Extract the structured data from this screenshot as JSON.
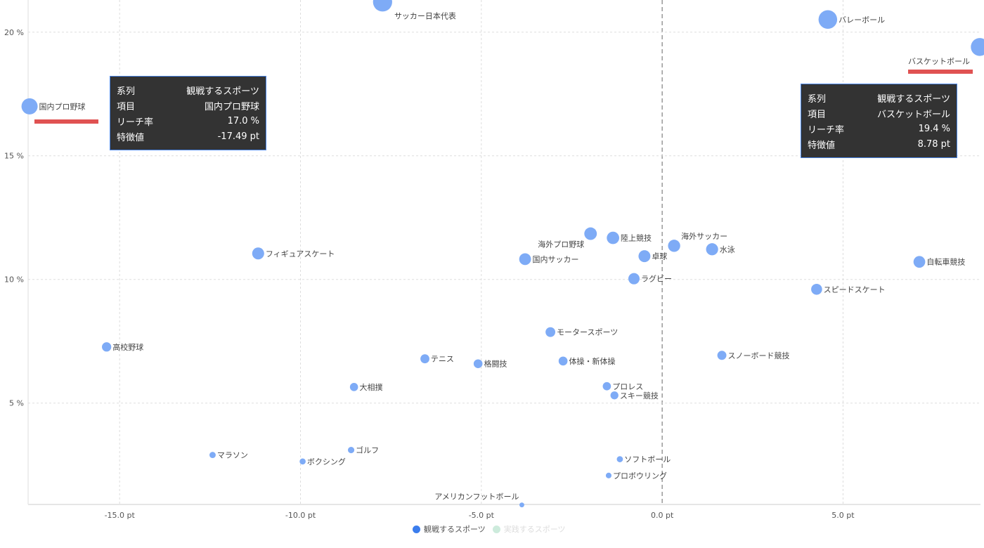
{
  "chart_data": {
    "type": "scatter",
    "xlim": [
      -17.53,
      8.8
    ],
    "ylim": [
      0.9,
      21.3
    ],
    "x_ticks": [
      -15,
      -10,
      -5,
      0,
      5
    ],
    "x_tick_labels": [
      "-15.0 pt",
      "-10.0 pt",
      "-5.0 pt",
      "0.0 pt",
      "5.0 pt"
    ],
    "y_ticks": [
      5,
      10,
      15,
      20
    ],
    "y_tick_labels": [
      "5 %",
      "10 %",
      "15 %",
      "20 %"
    ],
    "grid": true,
    "legend_placement": "bottom",
    "colors": {
      "bubble": "#7eabf6",
      "series1": "#3b7ded",
      "series2": "#cdebdc",
      "highlight": "#e05252"
    },
    "series": [
      {
        "name": "観戦するスポーツ",
        "active": true,
        "points": [
          {
            "label": "サッカー日本代表",
            "x": -7.73,
            "y": 21.22,
            "label_pos": "below-right"
          },
          {
            "label": "バレーボール",
            "x": 4.58,
            "y": 20.51,
            "label_pos": "right"
          },
          {
            "label": "バスケットボール",
            "x": 8.78,
            "y": 19.4,
            "label_pos": "below-left"
          },
          {
            "label": "国内プロ野球",
            "x": -17.49,
            "y": 17.0,
            "label_pos": "right"
          },
          {
            "label": "フィギュアスケート",
            "x": -11.17,
            "y": 11.05,
            "label_pos": "right"
          },
          {
            "label": "海外プロ野球",
            "x": -1.98,
            "y": 11.85,
            "label_pos": "below-left"
          },
          {
            "label": "陸上競技",
            "x": -1.36,
            "y": 11.68,
            "label_pos": "right"
          },
          {
            "label": "国内サッカー",
            "x": -3.79,
            "y": 10.82,
            "label_pos": "right"
          },
          {
            "label": "卓球",
            "x": -0.49,
            "y": 10.94,
            "label_pos": "right"
          },
          {
            "label": "海外サッカー",
            "x": 0.33,
            "y": 11.36,
            "label_pos": "above-right"
          },
          {
            "label": "水泳",
            "x": 1.38,
            "y": 11.22,
            "label_pos": "right"
          },
          {
            "label": "ラグビー",
            "x": -0.78,
            "y": 10.03,
            "label_pos": "right"
          },
          {
            "label": "自転車競技",
            "x": 7.11,
            "y": 10.71,
            "label_pos": "right"
          },
          {
            "label": "スピードスケート",
            "x": 4.27,
            "y": 9.6,
            "label_pos": "right"
          },
          {
            "label": "高校野球",
            "x": -15.36,
            "y": 7.27,
            "label_pos": "right"
          },
          {
            "label": "モータースポーツ",
            "x": -3.09,
            "y": 7.87,
            "label_pos": "right"
          },
          {
            "label": "テニス",
            "x": -6.56,
            "y": 6.79,
            "label_pos": "right"
          },
          {
            "label": "格闘技",
            "x": -5.09,
            "y": 6.59,
            "label_pos": "right"
          },
          {
            "label": "体操・新体操",
            "x": -2.74,
            "y": 6.7,
            "label_pos": "right"
          },
          {
            "label": "スノーボード競技",
            "x": 1.65,
            "y": 6.93,
            "label_pos": "right"
          },
          {
            "label": "大相撲",
            "x": -8.52,
            "y": 5.65,
            "label_pos": "right"
          },
          {
            "label": "プロレス",
            "x": -1.53,
            "y": 5.68,
            "label_pos": "right"
          },
          {
            "label": "スキー競技",
            "x": -1.32,
            "y": 5.31,
            "label_pos": "right"
          },
          {
            "label": "マラソン",
            "x": -12.43,
            "y": 2.9,
            "label_pos": "right"
          },
          {
            "label": "ゴルフ",
            "x": -8.6,
            "y": 3.1,
            "label_pos": "right"
          },
          {
            "label": "ボクシング",
            "x": -9.94,
            "y": 2.64,
            "label_pos": "right"
          },
          {
            "label": "ソフトボール",
            "x": -1.17,
            "y": 2.73,
            "label_pos": "right"
          },
          {
            "label": "プロボウリング",
            "x": -1.48,
            "y": 2.07,
            "label_pos": "right"
          },
          {
            "label": "アメリカンフットボール",
            "x": -3.88,
            "y": 0.88,
            "label_pos": "above-left"
          }
        ]
      },
      {
        "name": "実践するスポーツ",
        "active": false,
        "points": []
      }
    ]
  },
  "tooltips": [
    {
      "rows": [
        [
          "系列",
          "観戦するスポーツ"
        ],
        [
          "項目",
          "国内プロ野球"
        ],
        [
          "リーチ率",
          "17.0 %"
        ],
        [
          "特徴値",
          "-17.49 pt"
        ]
      ]
    },
    {
      "rows": [
        [
          "系列",
          "観戦するスポーツ"
        ],
        [
          "項目",
          "バスケットボール"
        ],
        [
          "リーチ率",
          "19.4 %"
        ],
        [
          "特徴値",
          "8.78 pt"
        ]
      ]
    }
  ]
}
